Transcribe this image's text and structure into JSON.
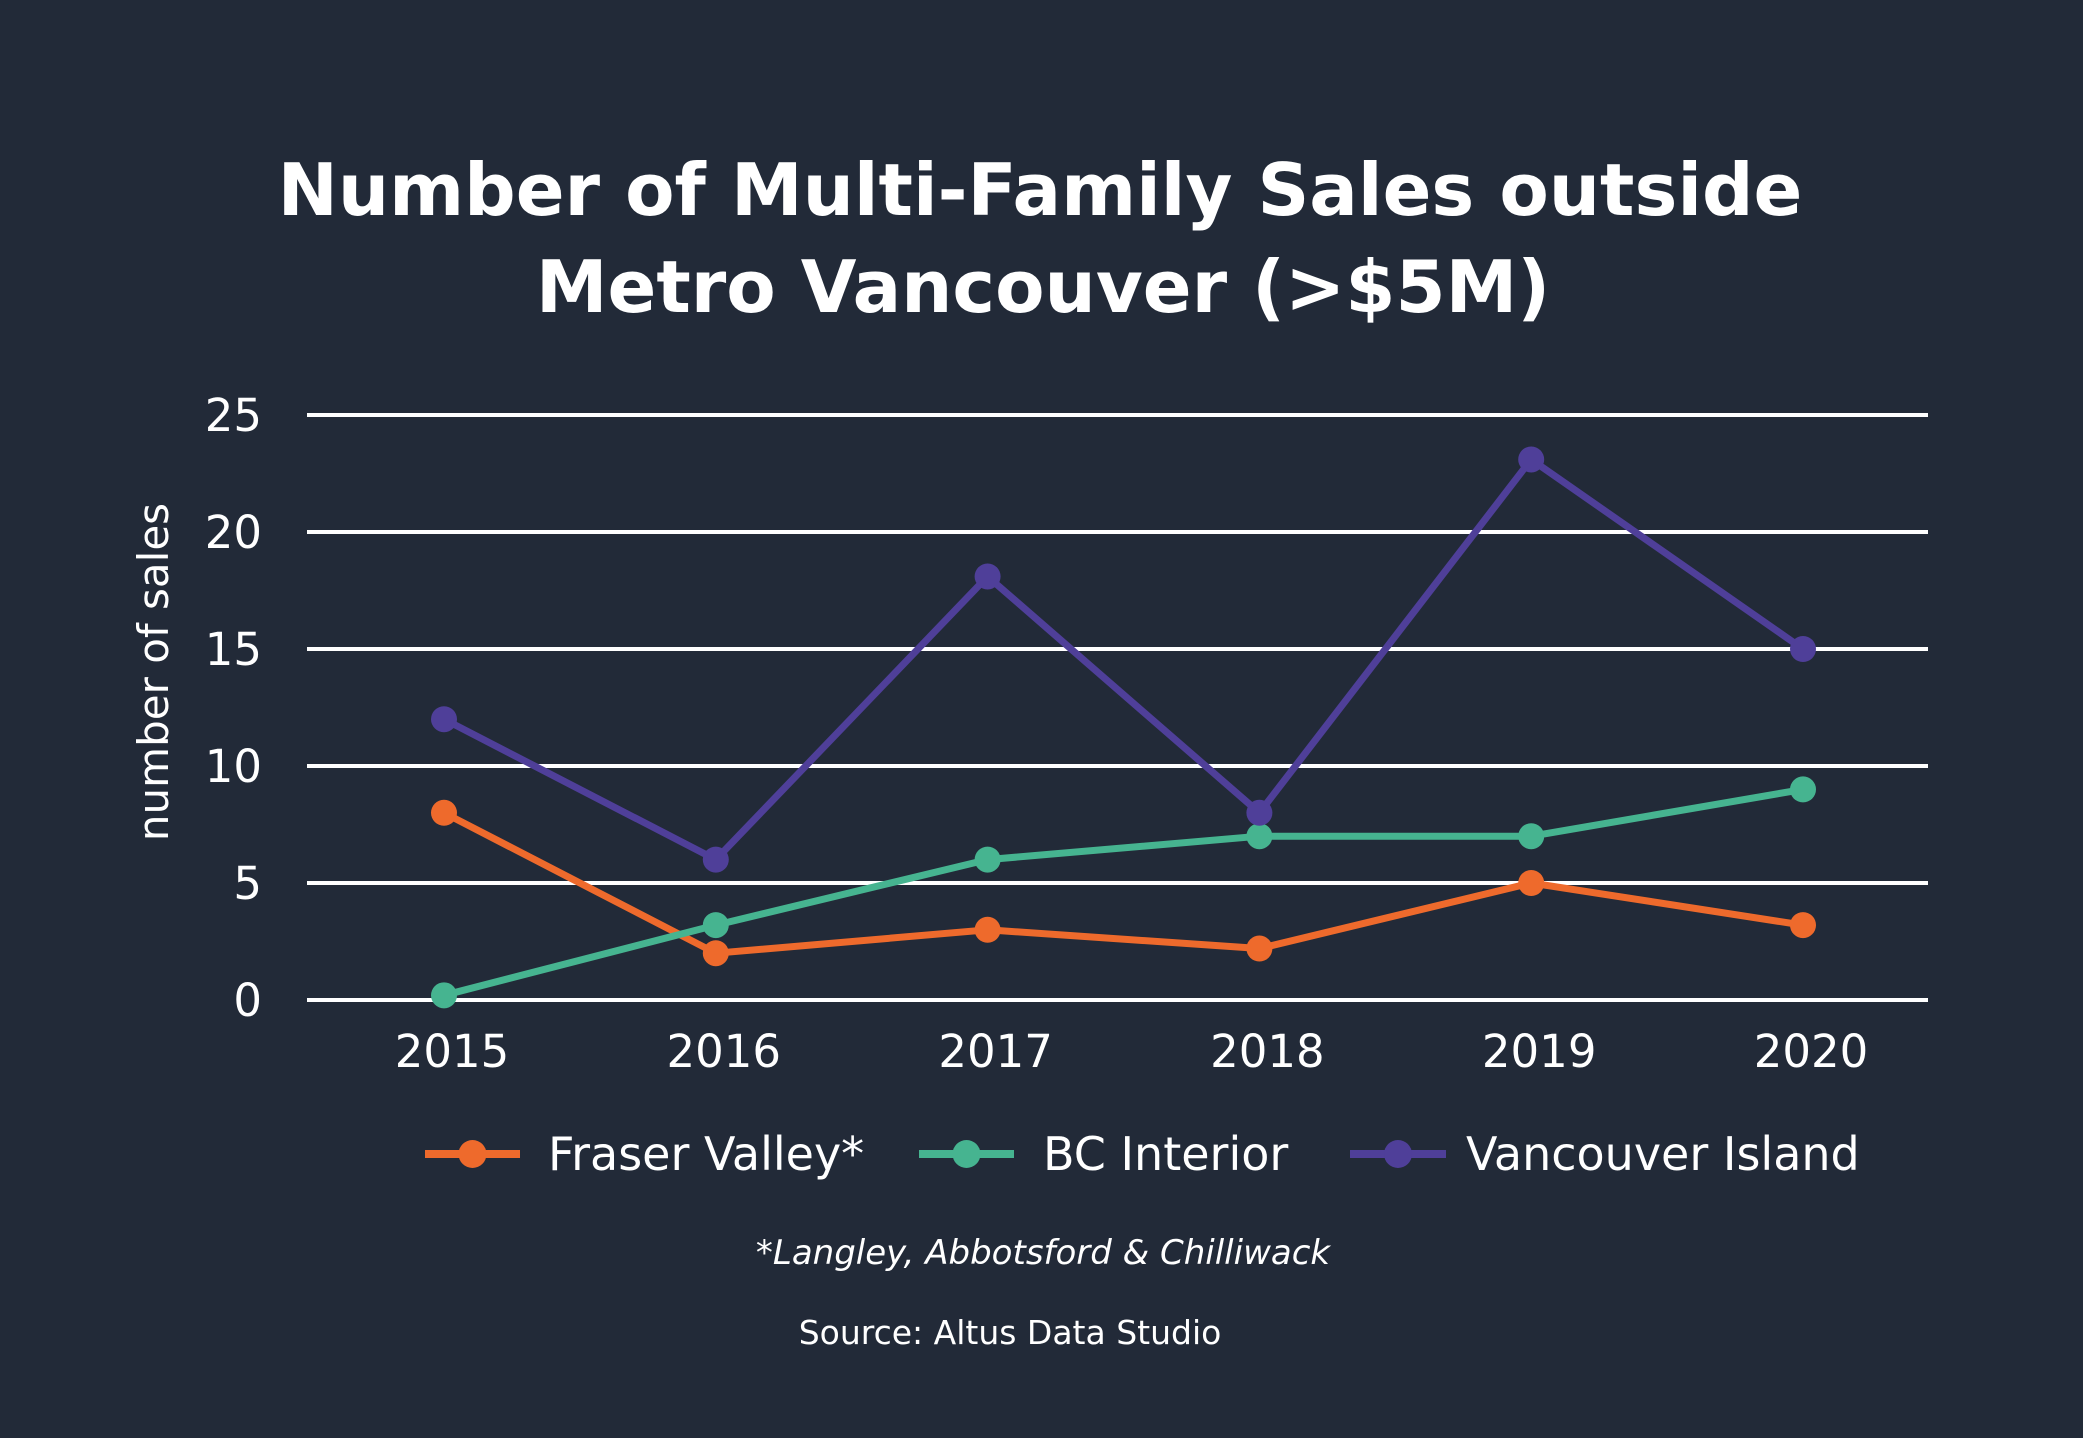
{
  "chart_data": {
    "type": "line",
    "title_lines": [
      "Number of Multi-Family Sales outside",
      "Metro Vancouver (>$5M)"
    ],
    "ylabel": "number of sales",
    "xlabel": "",
    "ylim": [
      0,
      25
    ],
    "yticks": [
      0,
      5,
      10,
      15,
      20,
      25
    ],
    "grid": true,
    "legend_position": "bottom",
    "categories": [
      "2015",
      "2016",
      "2017",
      "2018",
      "2019",
      "2020"
    ],
    "series": [
      {
        "name": "Fraser Valley*",
        "color": "#ee6a2c",
        "values": [
          8,
          2,
          3,
          2.2,
          5,
          3.2
        ]
      },
      {
        "name": "BC Interior",
        "color": "#46b490",
        "values": [
          0.2,
          3.2,
          6,
          7,
          7,
          9
        ]
      },
      {
        "name": "Vancouver Island",
        "color": "#4f3f99",
        "values": [
          12,
          6,
          18.1,
          8,
          23.1,
          15
        ]
      }
    ],
    "footnote": "*Langley, Abbotsford & Chilliwack",
    "source": "Source: Altus Data Studio"
  }
}
